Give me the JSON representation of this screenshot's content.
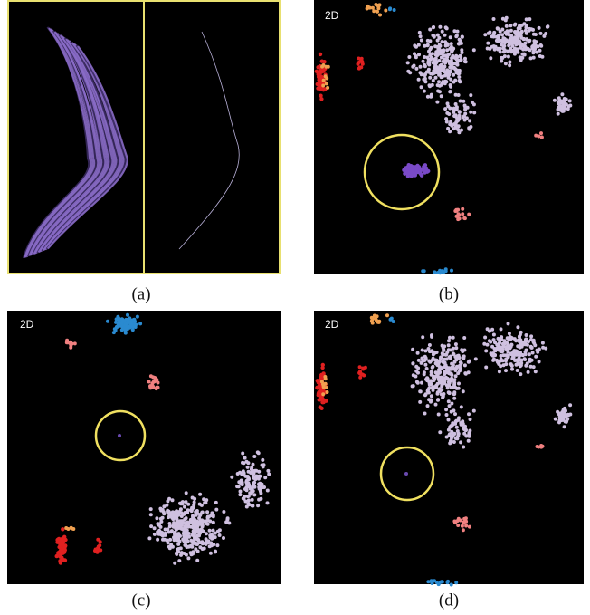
{
  "panels": [
    {
      "caption": "(a)"
    },
    {
      "caption": "(b)",
      "label": "2D"
    },
    {
      "caption": "(c)",
      "label": "2D"
    },
    {
      "caption": "(d)",
      "label": "2D"
    }
  ]
}
